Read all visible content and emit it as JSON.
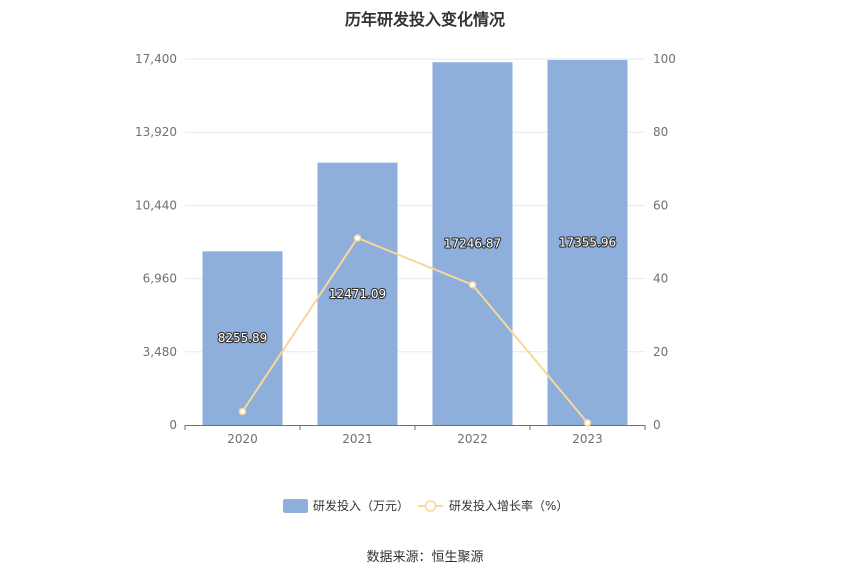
{
  "title": "历年研发投入变化情况",
  "source": "数据来源：恒生聚源",
  "colors": {
    "bar": "#8eaedb",
    "line": "#f8d898",
    "grid": "#e6e8ee",
    "axis": "#6e7079"
  },
  "chart_data": {
    "type": "bar",
    "title": "历年研发投入变化情况",
    "categories": [
      "2020",
      "2021",
      "2022",
      "2023"
    ],
    "series": [
      {
        "name": "研发投入（万元）",
        "type": "bar",
        "axis": "left",
        "values": [
          8255.89,
          12471.09,
          17246.87,
          17355.96
        ],
        "labels": [
          "8255.89",
          "12471.09",
          "17246.87",
          "17355.96"
        ]
      },
      {
        "name": "研发投入增长率（%）",
        "type": "line",
        "axis": "right",
        "values": [
          3.7,
          51.1,
          38.3,
          0.6
        ]
      }
    ],
    "y_left": {
      "ylim": [
        0,
        17400
      ],
      "ticks": [
        "0",
        "3,480",
        "6,960",
        "10,440",
        "13,920",
        "17,400"
      ]
    },
    "y_right": {
      "ylim": [
        0,
        100
      ],
      "ticks": [
        "0",
        "20",
        "40",
        "60",
        "80",
        "100"
      ]
    },
    "grid": true,
    "legend": "bottom-center"
  }
}
